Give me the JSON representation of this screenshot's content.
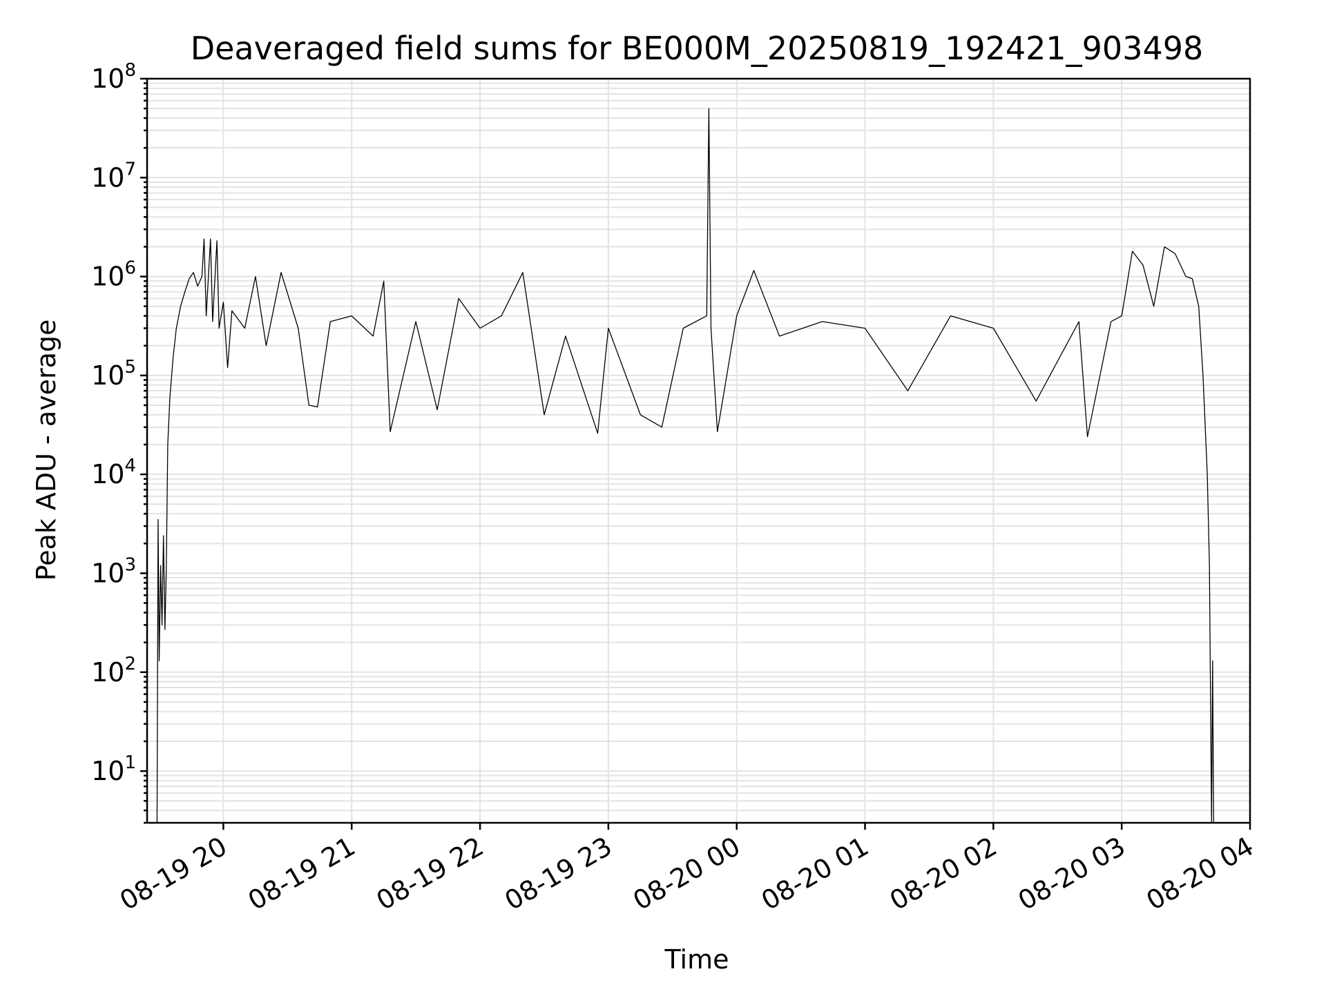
{
  "chart_data": {
    "type": "line",
    "title": "Deaveraged field sums for BE000M_20250819_192421_903498",
    "xlabel": "Time",
    "ylabel": "Peak ADU - average",
    "yscale": "log",
    "grid": "major and minor",
    "x_axis_type": "datetime",
    "xlim": [
      "2025-08-19T19:24:21",
      "2025-08-20T04:00:00"
    ],
    "ylim": [
      3,
      100000000
    ],
    "x_ticks": [
      "2025-08-19T20:00",
      "2025-08-19T21:00",
      "2025-08-19T22:00",
      "2025-08-19T23:00",
      "2025-08-20T00:00",
      "2025-08-20T01:00",
      "2025-08-20T02:00",
      "2025-08-20T03:00",
      "2025-08-20T04:00"
    ],
    "x_tick_labels": [
      "08-19 20",
      "08-19 21",
      "08-19 22",
      "08-19 23",
      "08-20 00",
      "08-20 01",
      "08-20 02",
      "08-20 03",
      "08-20 04"
    ],
    "y_ticks": [
      {
        "value": 10,
        "base": "10",
        "exp": "1"
      },
      {
        "value": 100,
        "base": "10",
        "exp": "2"
      },
      {
        "value": 1000,
        "base": "10",
        "exp": "3"
      },
      {
        "value": 10000,
        "base": "10",
        "exp": "4"
      },
      {
        "value": 100000,
        "base": "10",
        "exp": "5"
      },
      {
        "value": 1000000,
        "base": "10",
        "exp": "6"
      },
      {
        "value": 10000000,
        "base": "10",
        "exp": "7"
      },
      {
        "value": 100000000,
        "base": "10",
        "exp": "8"
      }
    ],
    "series": [
      {
        "color": "#000000",
        "points": [
          [
            "2025-08-19T19:29:00",
            3
          ],
          [
            "2025-08-19T19:29:30",
            3500
          ],
          [
            "2025-08-19T19:30:00",
            130
          ],
          [
            "2025-08-19T19:30:40",
            1200
          ],
          [
            "2025-08-19T19:31:20",
            300
          ],
          [
            "2025-08-19T19:32:00",
            2400
          ],
          [
            "2025-08-19T19:32:40",
            270
          ],
          [
            "2025-08-19T19:33:20",
            1100
          ],
          [
            "2025-08-19T19:34:00",
            20000
          ],
          [
            "2025-08-19T19:35:00",
            60000
          ],
          [
            "2025-08-19T19:36:30",
            150000
          ],
          [
            "2025-08-19T19:38:00",
            300000
          ],
          [
            "2025-08-19T19:40:00",
            500000
          ],
          [
            "2025-08-19T19:42:00",
            700000
          ],
          [
            "2025-08-19T19:44:00",
            950000
          ],
          [
            "2025-08-19T19:46:00",
            1100000
          ],
          [
            "2025-08-19T19:48:00",
            800000
          ],
          [
            "2025-08-19T19:50:00",
            1000000
          ],
          [
            "2025-08-19T19:51:00",
            2400000
          ],
          [
            "2025-08-19T19:52:00",
            400000
          ],
          [
            "2025-08-19T19:54:00",
            2400000
          ],
          [
            "2025-08-19T19:55:00",
            350000
          ],
          [
            "2025-08-19T19:57:00",
            2300000
          ],
          [
            "2025-08-19T19:58:00",
            300000
          ],
          [
            "2025-08-19T20:00:00",
            550000
          ],
          [
            "2025-08-19T20:02:00",
            120000
          ],
          [
            "2025-08-19T20:04:00",
            450000
          ],
          [
            "2025-08-19T20:10:00",
            300000
          ],
          [
            "2025-08-19T20:15:00",
            1000000
          ],
          [
            "2025-08-19T20:20:00",
            200000
          ],
          [
            "2025-08-19T20:27:00",
            1100000
          ],
          [
            "2025-08-19T20:35:00",
            300000
          ],
          [
            "2025-08-19T20:40:00",
            50000
          ],
          [
            "2025-08-19T20:44:00",
            48000
          ],
          [
            "2025-08-19T20:50:00",
            350000
          ],
          [
            "2025-08-19T21:00:00",
            400000
          ],
          [
            "2025-08-19T21:10:00",
            250000
          ],
          [
            "2025-08-19T21:15:00",
            900000
          ],
          [
            "2025-08-19T21:18:00",
            27000
          ],
          [
            "2025-08-19T21:30:00",
            350000
          ],
          [
            "2025-08-19T21:40:00",
            45000
          ],
          [
            "2025-08-19T21:50:00",
            600000
          ],
          [
            "2025-08-19T22:00:00",
            300000
          ],
          [
            "2025-08-19T22:10:00",
            400000
          ],
          [
            "2025-08-19T22:20:00",
            1100000
          ],
          [
            "2025-08-19T22:30:00",
            40000
          ],
          [
            "2025-08-19T22:40:00",
            250000
          ],
          [
            "2025-08-19T22:55:00",
            26000
          ],
          [
            "2025-08-19T23:00:00",
            300000
          ],
          [
            "2025-08-19T23:15:00",
            40000
          ],
          [
            "2025-08-19T23:25:00",
            30000
          ],
          [
            "2025-08-19T23:35:00",
            300000
          ],
          [
            "2025-08-19T23:46:00",
            400000
          ],
          [
            "2025-08-19T23:47:00",
            50000000
          ],
          [
            "2025-08-19T23:48:00",
            300000
          ],
          [
            "2025-08-19T23:51:00",
            27000
          ],
          [
            "2025-08-20T00:00:00",
            400000
          ],
          [
            "2025-08-20T00:08:00",
            1150000
          ],
          [
            "2025-08-20T00:20:00",
            250000
          ],
          [
            "2025-08-20T00:40:00",
            350000
          ],
          [
            "2025-08-20T01:00:00",
            300000
          ],
          [
            "2025-08-20T01:20:00",
            70000
          ],
          [
            "2025-08-20T01:40:00",
            400000
          ],
          [
            "2025-08-20T02:00:00",
            300000
          ],
          [
            "2025-08-20T02:20:00",
            55000
          ],
          [
            "2025-08-20T02:40:00",
            350000
          ],
          [
            "2025-08-20T02:44:00",
            24000
          ],
          [
            "2025-08-20T02:55:00",
            350000
          ],
          [
            "2025-08-20T03:00:00",
            400000
          ],
          [
            "2025-08-20T03:05:00",
            1800000
          ],
          [
            "2025-08-20T03:10:00",
            1300000
          ],
          [
            "2025-08-20T03:15:00",
            500000
          ],
          [
            "2025-08-20T03:20:00",
            2000000
          ],
          [
            "2025-08-20T03:25:00",
            1700000
          ],
          [
            "2025-08-20T03:30:00",
            1000000
          ],
          [
            "2025-08-20T03:33:00",
            950000
          ],
          [
            "2025-08-20T03:36:00",
            500000
          ],
          [
            "2025-08-20T03:38:00",
            100000
          ],
          [
            "2025-08-20T03:40:00",
            10000
          ],
          [
            "2025-08-20T03:41:00",
            1200
          ],
          [
            "2025-08-20T03:42:00",
            3
          ],
          [
            "2025-08-20T03:42:30",
            130
          ],
          [
            "2025-08-20T03:43:00",
            3
          ]
        ]
      }
    ]
  }
}
